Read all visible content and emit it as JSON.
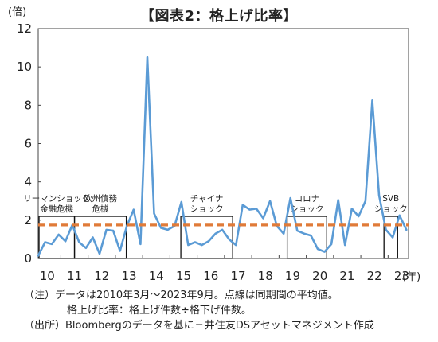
{
  "chart_data": {
    "type": "line",
    "title": "【図表2：格上げ比率】",
    "y_unit": "(倍)",
    "x_unit": "(年)",
    "ylim": [
      0,
      12
    ],
    "yticks": [
      0,
      2,
      4,
      6,
      8,
      10,
      12
    ],
    "xlim": [
      2010.17,
      2023.75
    ],
    "xtick_labels": [
      "10",
      "11",
      "12",
      "13",
      "14",
      "15",
      "16",
      "17",
      "18",
      "19",
      "20",
      "21",
      "22",
      "23"
    ],
    "grid": false,
    "series": [
      {
        "name": "",
        "color": "#5b9bd5",
        "x": [
          2010.17,
          2010.42,
          2010.67,
          2010.92,
          2011.17,
          2011.42,
          2011.67,
          2011.92,
          2012.17,
          2012.42,
          2012.67,
          2012.92,
          2013.17,
          2013.42,
          2013.67,
          2013.92,
          2014.17,
          2014.42,
          2014.67,
          2014.92,
          2015.17,
          2015.42,
          2015.67,
          2015.92,
          2016.17,
          2016.42,
          2016.67,
          2016.92,
          2017.17,
          2017.42,
          2017.67,
          2017.92,
          2018.17,
          2018.42,
          2018.67,
          2018.92,
          2019.17,
          2019.42,
          2019.67,
          2019.92,
          2020.17,
          2020.42,
          2020.67,
          2020.92,
          2021.17,
          2021.42,
          2021.67,
          2021.92,
          2022.17,
          2022.42,
          2022.67,
          2022.92,
          2023.17,
          2023.42,
          2023.67
        ],
        "y": [
          0.15,
          0.85,
          0.75,
          1.25,
          0.9,
          1.75,
          0.85,
          0.55,
          1.1,
          0.25,
          1.5,
          1.45,
          0.4,
          1.7,
          2.55,
          0.75,
          10.5,
          2.35,
          1.6,
          1.5,
          1.7,
          2.95,
          0.7,
          0.85,
          0.7,
          0.9,
          1.3,
          1.5,
          1.0,
          0.7,
          2.8,
          2.55,
          2.6,
          2.1,
          3.0,
          1.7,
          1.3,
          3.15,
          1.45,
          1.3,
          1.2,
          0.5,
          0.35,
          0.75,
          3.05,
          0.7,
          2.6,
          2.2,
          3.0,
          8.25,
          3.3,
          1.5,
          1.1,
          2.25,
          1.5
        ]
      },
      {
        "name": "",
        "color": "#e07b39",
        "dashed": true,
        "x": [
          2010.17,
          2023.75
        ],
        "y": [
          1.75,
          1.75
        ]
      }
    ],
    "annotations": [
      {
        "lines": [
          "リーマンショック",
          "金融危機"
        ],
        "x0": 2010.2,
        "x1": 2011.5,
        "y0": 0,
        "y1": 2.2
      },
      {
        "lines": [
          "欧州債務",
          "危機"
        ],
        "x0": 2011.5,
        "x1": 2013.4,
        "y0": 0,
        "y1": 2.2
      },
      {
        "lines": [
          "チャイナ",
          "ショック"
        ],
        "x0": 2015.4,
        "x1": 2017.3,
        "y0": 0,
        "y1": 2.2
      },
      {
        "lines": [
          "コロナ",
          "ショック"
        ],
        "x0": 2019.3,
        "x1": 2020.75,
        "y0": 0,
        "y1": 2.2
      },
      {
        "lines": [
          "SVB",
          "ショック"
        ],
        "x0": 2022.85,
        "x1": 2023.35,
        "y0": 0,
        "y1": 2.2
      }
    ]
  },
  "notes": {
    "line1": "（注）データは2010年3月～2023年9月。点線は同期間の平均値。",
    "line2": "格上げ比率：格上げ件数÷格下げ件数。",
    "line3": "（出所）Bloombergのデータを基に三井住友DSアセットマネジメント作成"
  }
}
